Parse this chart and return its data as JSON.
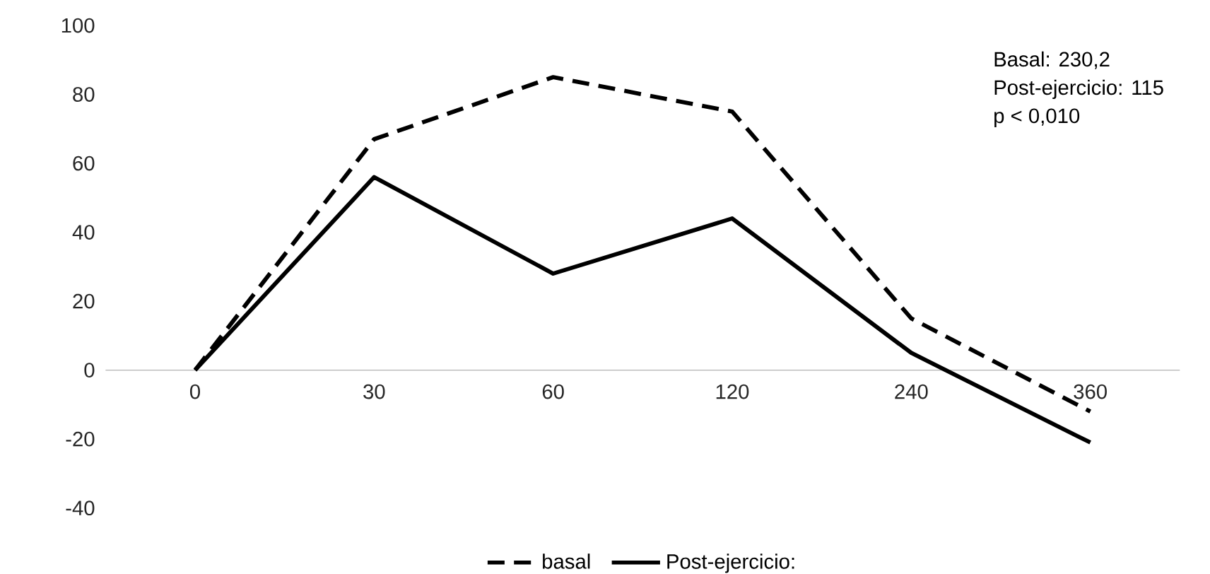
{
  "chart_data": {
    "type": "line",
    "categories": [
      "0",
      "30",
      "60",
      "120",
      "240",
      "360"
    ],
    "series": [
      {
        "name": "basal",
        "color": "#000000",
        "line_style": "dashed",
        "values": [
          0,
          67,
          85,
          75,
          15,
          -12
        ]
      },
      {
        "name": "Post-ejercicio:",
        "color": "#000000",
        "line_style": "solid",
        "values": [
          0,
          56,
          28,
          44,
          5,
          -21
        ]
      }
    ],
    "ylim": [
      -40,
      100
    ],
    "yticks": [
      -40,
      -20,
      0,
      20,
      40,
      60,
      80,
      100
    ],
    "legend": "bottom",
    "marker": "none",
    "annotations": [
      "Basal: 230,2",
      "Post-ejercicio: 115",
      "p < 0,010"
    ]
  }
}
